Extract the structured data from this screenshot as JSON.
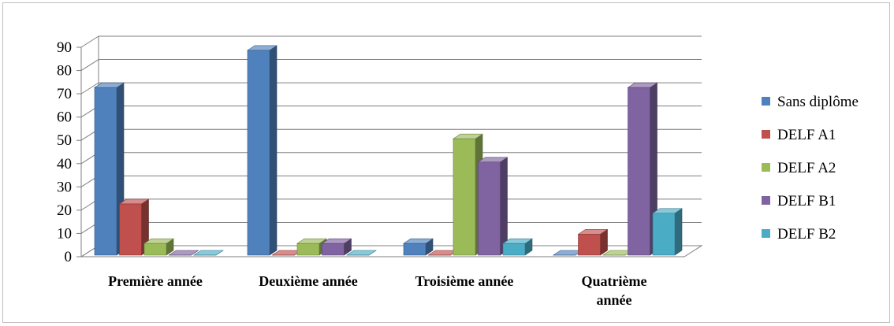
{
  "chart_data": {
    "type": "bar",
    "style": "3d-clustered-column",
    "title": "",
    "xlabel": "",
    "ylabel": "",
    "ylim": [
      0,
      90
    ],
    "yticks": [
      0,
      10,
      20,
      30,
      40,
      50,
      60,
      70,
      80,
      90
    ],
    "grid": true,
    "legend_position": "right",
    "categories": [
      [
        "Première année"
      ],
      [
        "Deuxième année"
      ],
      [
        "Troisième année"
      ],
      [
        "Quatrième",
        "année"
      ]
    ],
    "series": [
      {
        "name": "Sans diplôme",
        "color": "#4F81BD",
        "values": [
          72,
          88,
          5,
          0
        ]
      },
      {
        "name": "DELF A1",
        "color": "#C0504D",
        "values": [
          22,
          0,
          0,
          9
        ]
      },
      {
        "name": "DELF A2",
        "color": "#9BBB59",
        "values": [
          5,
          5,
          50,
          0
        ]
      },
      {
        "name": "DELF B1",
        "color": "#8064A2",
        "values": [
          0,
          5,
          40,
          72
        ]
      },
      {
        "name": "DELF B2",
        "color": "#4BACC6",
        "values": [
          0,
          0,
          5,
          18
        ]
      }
    ]
  }
}
